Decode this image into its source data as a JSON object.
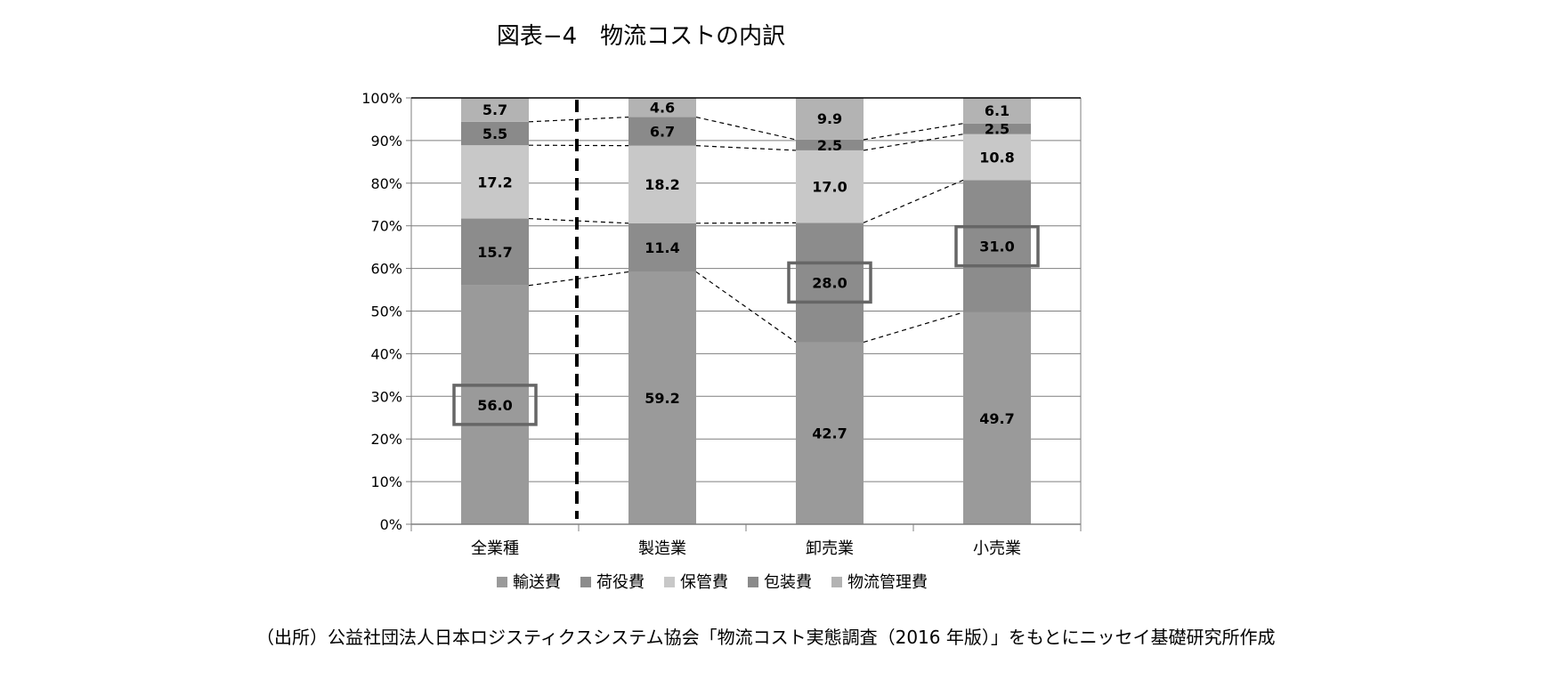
{
  "chart_data": {
    "type": "bar",
    "title": "図表−4　物流コストの内訳",
    "categories": [
      "全業種",
      "製造業",
      "卸売業",
      "小売業"
    ],
    "series": [
      {
        "name": "輸送費",
        "values": [
          56.0,
          59.2,
          42.7,
          49.7
        ],
        "color": "#9a9a9a"
      },
      {
        "name": "荷役費",
        "values": [
          15.7,
          11.4,
          28.0,
          31.0
        ],
        "color": "#8c8c8c"
      },
      {
        "name": "保管費",
        "values": [
          17.2,
          18.2,
          17.0,
          10.8
        ],
        "color": "#c8c8c8"
      },
      {
        "name": "包装費",
        "values": [
          5.5,
          6.7,
          2.5,
          2.5
        ],
        "color": "#8a8a8a"
      },
      {
        "name": "物流管理費",
        "values": [
          5.7,
          4.6,
          9.9,
          6.1
        ],
        "color": "#b3b3b3"
      }
    ],
    "stacking": "percent",
    "ylim": [
      0,
      100
    ],
    "yticks": [
      "0%",
      "10%",
      "20%",
      "30%",
      "40%",
      "50%",
      "60%",
      "70%",
      "80%",
      "90%",
      "100%"
    ],
    "grid": true,
    "legend_position": "bottom",
    "highlighted": [
      {
        "category": "全業種",
        "series": "輸送費"
      },
      {
        "category": "卸売業",
        "series": "荷役費"
      },
      {
        "category": "小売業",
        "series": "荷役費"
      }
    ],
    "separator_after_category": "全業種",
    "connector_lines": "dashed"
  },
  "source_note": "（出所）公益社団法人日本ロジスティクスシステム協会「物流コスト実態調査（2016 年版）」をもとにニッセイ基礎研究所作成"
}
